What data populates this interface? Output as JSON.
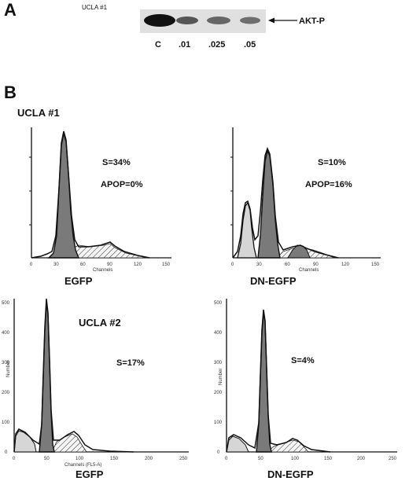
{
  "panel_a": {
    "letter": "A",
    "title": "UCLA #1",
    "band_label": "AKT-P",
    "lanes": [
      "C",
      ".01",
      ".025",
      ".05"
    ]
  },
  "panel_b": {
    "letter": "B",
    "histograms": [
      {
        "id": "ucla1-egfp",
        "title": "UCLA #1",
        "s_label": "S=34%",
        "apop_label": "APOP=0%",
        "xlabel": "EGFP",
        "axis_title": "Channels",
        "ylabel": "",
        "xticks": [
          "0",
          "30",
          "60",
          "90",
          "120",
          "150"
        ],
        "yticks": []
      },
      {
        "id": "ucla1-dn-egfp",
        "title": "",
        "s_label": "S=10%",
        "apop_label": "APOP=16%",
        "xlabel": "DN-EGFP",
        "axis_title": "Channels",
        "ylabel": "",
        "xticks": [
          "0",
          "30",
          "60",
          "90",
          "120",
          "150"
        ],
        "yticks": []
      },
      {
        "id": "ucla2-egfp",
        "title": "UCLA #2",
        "s_label": "S=17%",
        "apop_label": "",
        "xlabel": "EGFP",
        "axis_title": "Channels (FL5-A)",
        "ylabel": "Number",
        "xticks": [
          "0",
          "50",
          "100",
          "150",
          "200",
          "250"
        ],
        "yticks": [
          "0",
          "100",
          "200",
          "300",
          "400",
          "500"
        ]
      },
      {
        "id": "ucla2-dn-egfp",
        "title": "",
        "s_label": "S=4%",
        "apop_label": "",
        "xlabel": "DN-EGFP",
        "axis_title": "",
        "ylabel": "Number",
        "xticks": [
          "0",
          "50",
          "100",
          "150",
          "200",
          "250"
        ],
        "yticks": [
          "0",
          "100",
          "200",
          "300",
          "400",
          "500"
        ]
      }
    ]
  },
  "colors": {
    "g1_fill": "#7a7a7a",
    "apop_fill": "#d6d6d6",
    "s_fill": "#f4f4f4",
    "outline": "#111111"
  }
}
